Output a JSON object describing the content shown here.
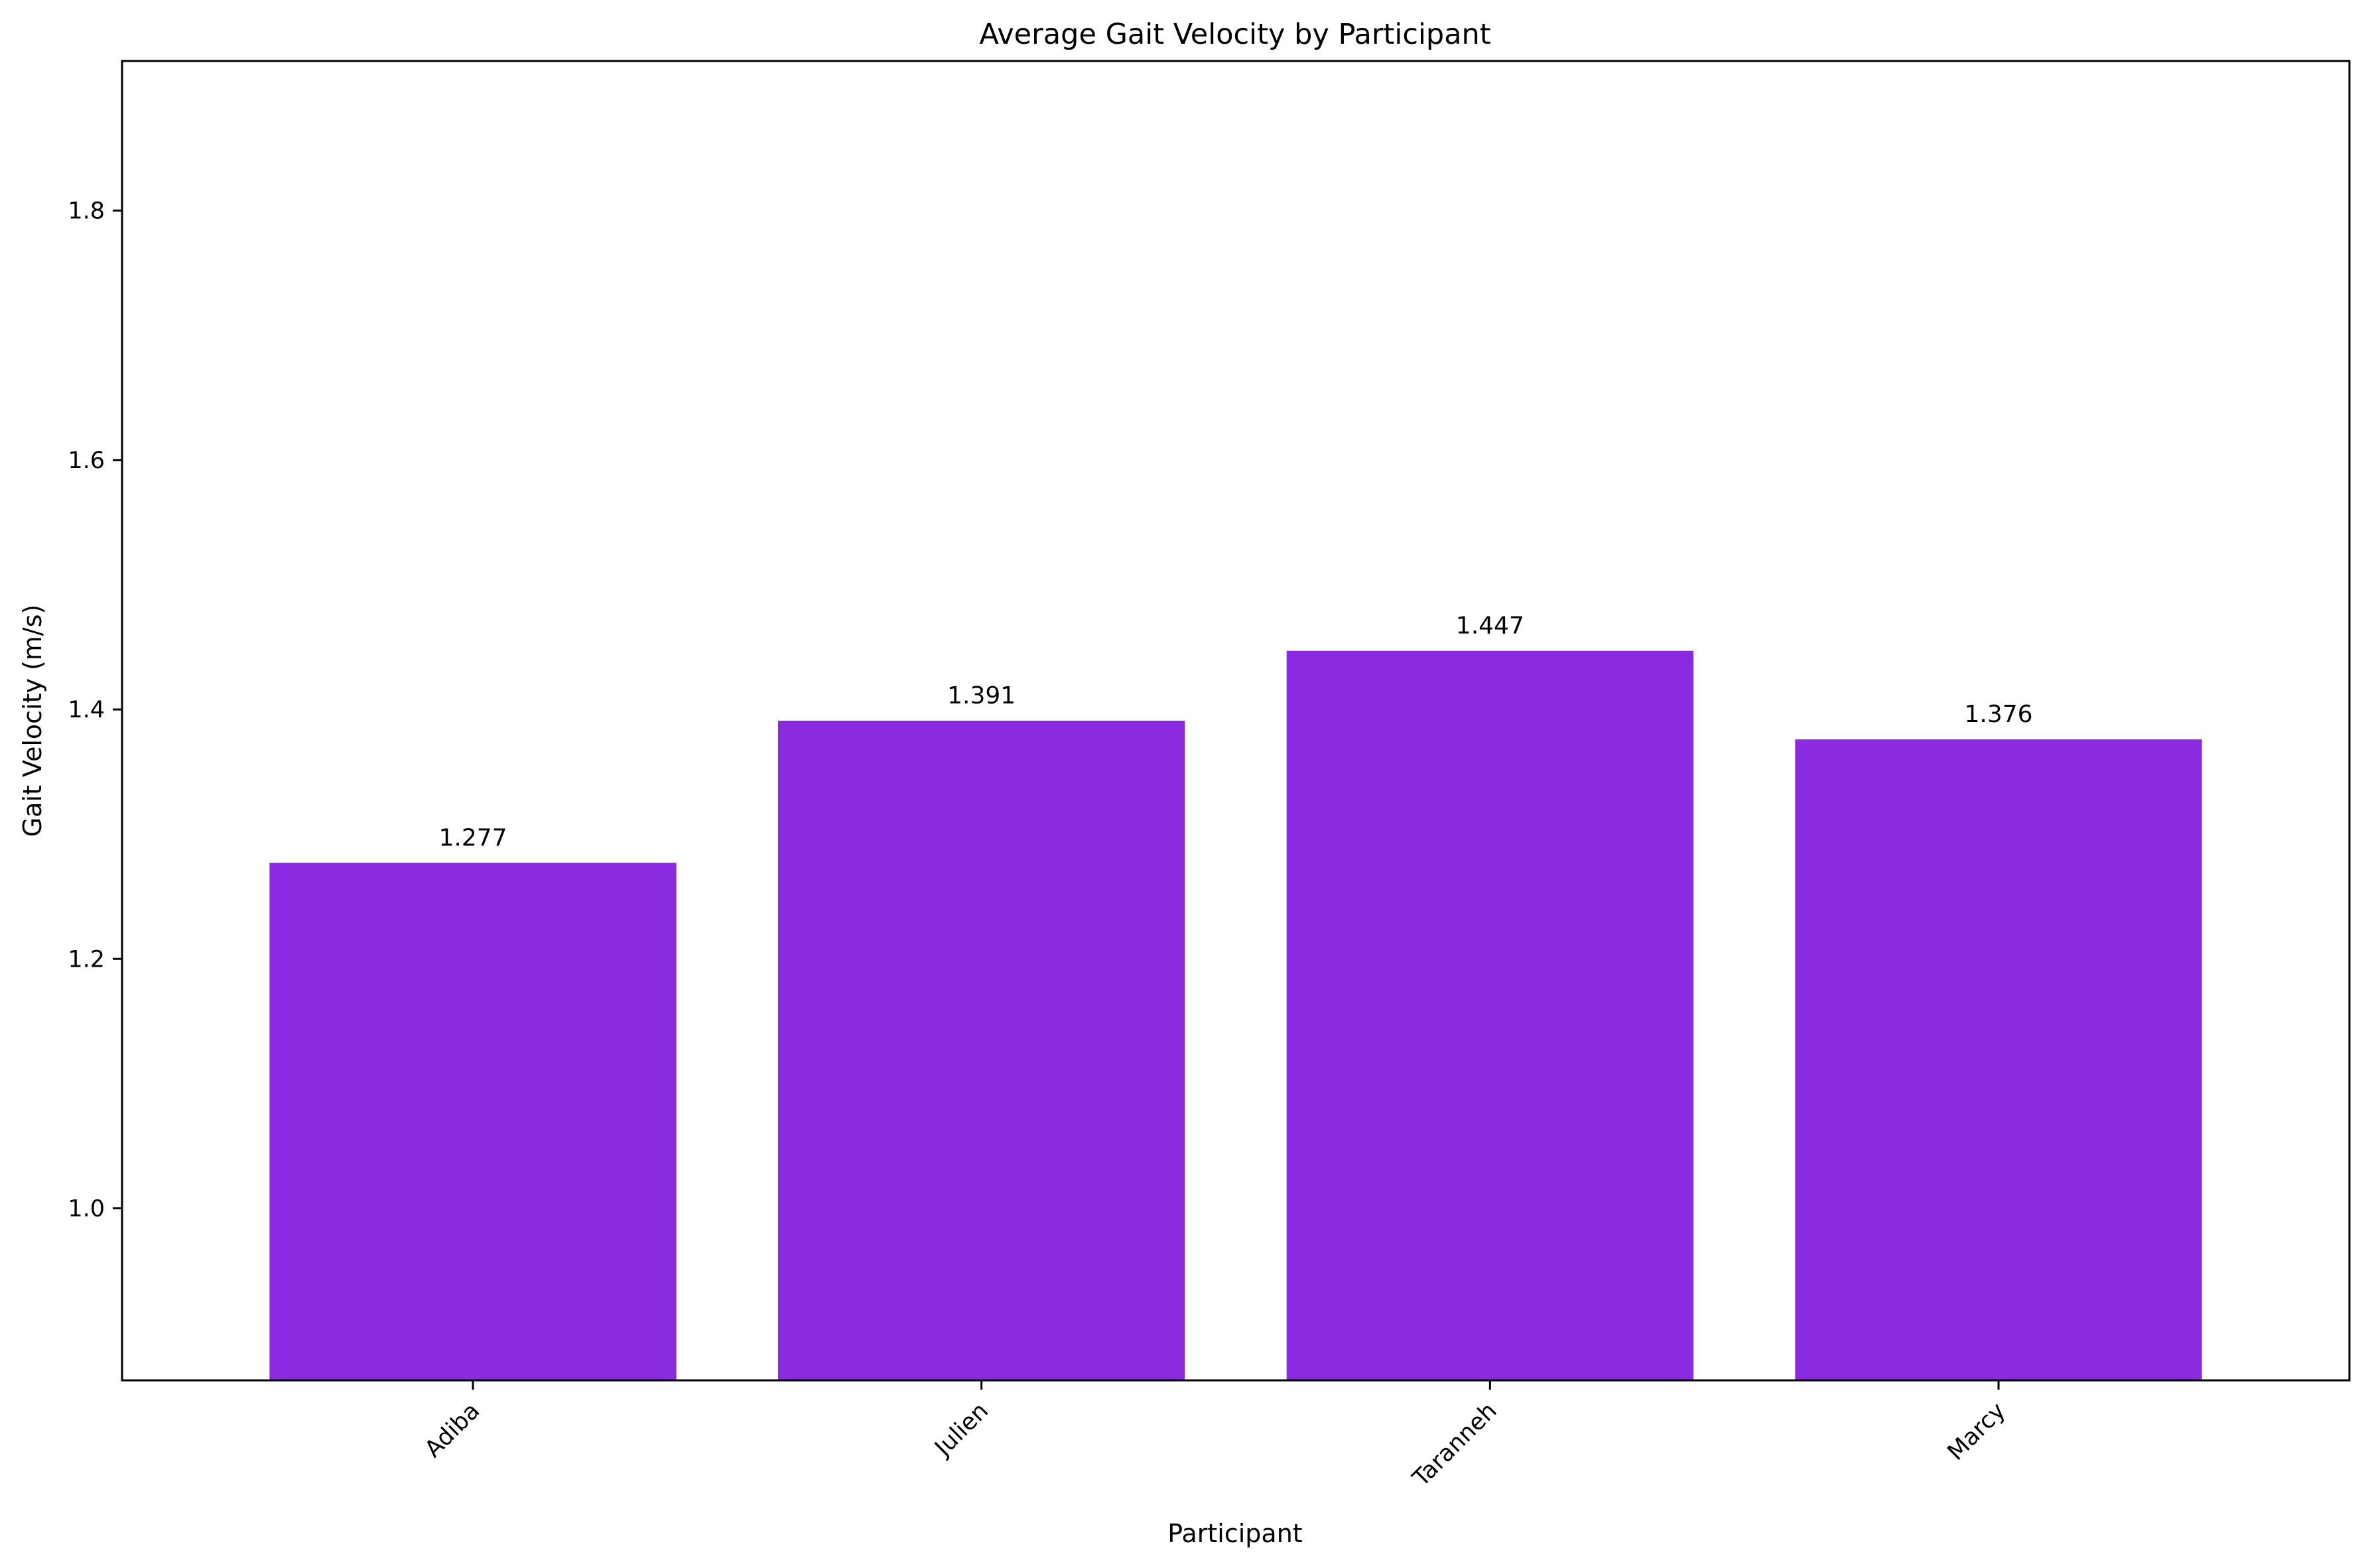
{
  "chart_data": {
    "type": "bar",
    "title": "Average Gait Velocity by Participant",
    "xlabel": "Participant",
    "ylabel": "Gait Velocity (m/s)",
    "categories": [
      "Adiba",
      "Julien",
      "Taranneh",
      "Marcy"
    ],
    "values": [
      1.277,
      1.391,
      1.447,
      1.376
    ],
    "value_labels": [
      "1.277",
      "1.391",
      "1.447",
      "1.376"
    ],
    "ylim": [
      0.862,
      1.92
    ],
    "yticks": [
      1.0,
      1.2,
      1.4,
      1.6,
      1.8
    ],
    "ytick_labels": [
      "1.0",
      "1.2",
      "1.4",
      "1.6",
      "1.8"
    ],
    "bar_color": "#8a2be2",
    "grid": false,
    "legend": "none"
  }
}
